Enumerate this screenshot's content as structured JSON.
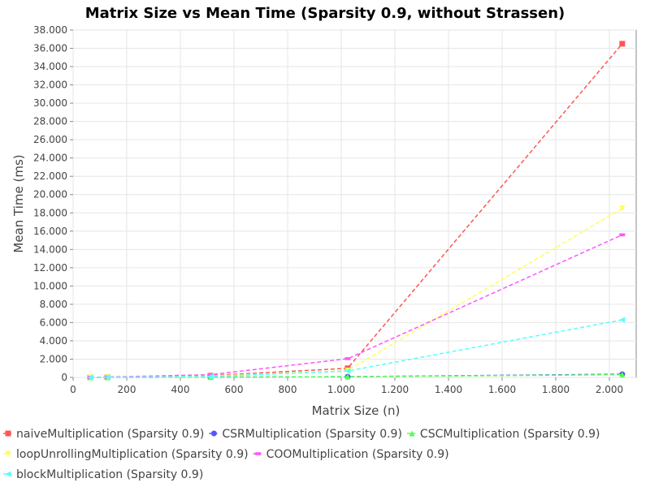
{
  "chart_data": {
    "type": "line",
    "title": "Matrix Size vs Mean Time (Sparsity 0.9, without Strassen)",
    "xlabel": "Matrix Size (n)",
    "ylabel": "Mean Time (ms)",
    "xlim": [
      0,
      2100
    ],
    "ylim": [
      0,
      38000
    ],
    "x_ticks": [
      0,
      200,
      400,
      600,
      800,
      1000,
      1200,
      1400,
      1600,
      1800,
      2000
    ],
    "x_tick_labels": [
      "0",
      "200",
      "400",
      "600",
      "800",
      "1.000",
      "1.200",
      "1.400",
      "1.600",
      "1.800",
      "2.000"
    ],
    "y_ticks": [
      0,
      2000,
      4000,
      6000,
      8000,
      10000,
      12000,
      14000,
      16000,
      18000,
      20000,
      22000,
      24000,
      26000,
      28000,
      30000,
      32000,
      34000,
      36000,
      38000
    ],
    "y_tick_labels": [
      "0",
      "2.000",
      "4.000",
      "6.000",
      "8.000",
      "10.000",
      "12.000",
      "14.000",
      "16.000",
      "18.000",
      "20.000",
      "22.000",
      "24.000",
      "26.000",
      "28.000",
      "30.000",
      "32.000",
      "34.000",
      "36.000",
      "38.000"
    ],
    "grid": true,
    "legend_position": "bottom",
    "x": [
      64,
      128,
      512,
      1024,
      2048
    ],
    "series": [
      {
        "name": "naiveMultiplication (Sparsity 0.9)",
        "color": "#ff5555",
        "marker": "square",
        "values": [
          10,
          30,
          200,
          1000,
          36500
        ]
      },
      {
        "name": "CSRMultiplication (Sparsity 0.9)",
        "color": "#5555ff",
        "marker": "circle",
        "values": [
          2,
          5,
          30,
          80,
          350
        ]
      },
      {
        "name": "CSCMultiplication (Sparsity 0.9)",
        "color": "#55ff55",
        "marker": "triangle-up",
        "values": [
          2,
          5,
          30,
          80,
          300
        ]
      },
      {
        "name": "loopUnrollingMultiplication (Sparsity 0.9)",
        "color": "#ffff55",
        "marker": "triangle-down",
        "values": [
          10,
          25,
          150,
          750,
          18500
        ]
      },
      {
        "name": "COOMultiplication (Sparsity 0.9)",
        "color": "#ff55ff",
        "marker": "rect",
        "values": [
          15,
          40,
          300,
          2050,
          15600
        ]
      },
      {
        "name": "blockMultiplication (Sparsity 0.9)",
        "color": "#55ffff",
        "marker": "triangle-left",
        "values": [
          10,
          20,
          100,
          700,
          6300
        ]
      }
    ]
  }
}
